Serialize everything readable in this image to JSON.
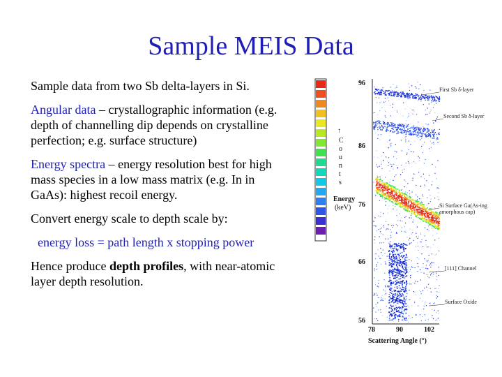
{
  "slide": {
    "title": "Sample MEIS Data",
    "para1": "Sample data from two Sb delta-layers in Si.",
    "para2_lead": "Angular data",
    "para2_rest": " – crystallographic information (e.g. depth of channelling dip depends on crystalline perfection; e.g. surface structure)",
    "para3_lead": "Energy spectra",
    "para3_rest": " – energy resolution best for high mass species in a low mass matrix (e.g. In in GaAs): highest recoil energy.",
    "para4": "Convert energy scale to depth scale by:",
    "formula": "energy loss = path length x stopping power",
    "para6_pre": "Hence produce ",
    "para6_bold": "depth profiles",
    "para6_post": ", with near-atomic layer depth resolution."
  },
  "figure": {
    "y_ticks": [
      "96",
      "86",
      "76",
      "66",
      "56"
    ],
    "x_ticks": [
      "78",
      "90",
      "102"
    ],
    "y_axis_label": "Energy",
    "y_axis_unit": "(keV)",
    "x_axis_label": "Scattering Angle (°)",
    "counts_label": "C o u n t s",
    "annotations": {
      "first": "First Sb δ-layer",
      "second": "Second Sb δ-layer",
      "surface": "Si Surface Ga(As-ing amorphous cap)",
      "channel": "[111] Channel",
      "oxide": "Surface Oxide"
    },
    "colorbar_colors": [
      "#6a1fb0",
      "#3a2fd0",
      "#2f55e8",
      "#2f7ff0",
      "#22a8f0",
      "#10c8e8",
      "#10d8b8",
      "#20d890",
      "#40e050",
      "#80e830",
      "#b8e820",
      "#e8e820",
      "#f0c020",
      "#f08820",
      "#f05020",
      "#e82818"
    ]
  }
}
